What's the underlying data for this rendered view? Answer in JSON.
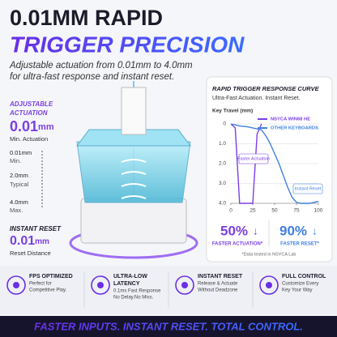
{
  "header": {
    "title_line1": "0.01MM RAPID",
    "title_line2": "TRIGGER PRECISION",
    "subtitle_lines": [
      "Adjustable actuation from 0.01mm to 4.0mm",
      "for ultra-fast response and instant reset."
    ]
  },
  "left_panel": {
    "actuation_label": [
      "ADJUSTABLE",
      "ACTUATION"
    ],
    "actuation_value": "0.01",
    "actuation_unit": "mm",
    "actuation_caption": "Min. Actuation",
    "scale": [
      {
        "value": "0.01mm",
        "caption": "Min."
      },
      {
        "value": "2.0mm",
        "caption": "Typical"
      },
      {
        "value": "4.0mm",
        "caption": "Max."
      }
    ],
    "reset_label": "INSTANT RESET",
    "reset_value": "0.01",
    "reset_unit": "mm",
    "reset_caption": "Reset Distance"
  },
  "chart_data": {
    "type": "line",
    "title": "RAPID TRIGGER RESPONSE CURVE",
    "subtitle": "Ultra-Fast Actuation. Instant Reset.",
    "y_label": "Key Travel (mm)",
    "x": [
      0,
      5,
      10,
      20,
      25,
      30,
      35,
      40,
      45,
      50,
      55,
      60,
      65,
      70,
      75,
      80,
      90,
      100
    ],
    "series": [
      {
        "name": "NSYCA WIN68 HE",
        "color": "#7b3fe4",
        "values": [
          0,
          0.2,
          4.0,
          4.0,
          4.0,
          0.5,
          0,
          null,
          null,
          null,
          null,
          null,
          null,
          null,
          null,
          null,
          null,
          null
        ]
      },
      {
        "name": "OTHER KEYBOARDS",
        "color": "#3f7fe0",
        "values": [
          0,
          0.05,
          0.1,
          0.15,
          0.2,
          0.25,
          0.3,
          0.6,
          1.0,
          1.5,
          2.0,
          2.6,
          3.2,
          3.7,
          3.95,
          4.0,
          4.0,
          3.9
        ]
      }
    ],
    "xlim": [
      0,
      100
    ],
    "ylim": [
      0,
      4
    ],
    "xticks": [
      0,
      25,
      50,
      75,
      100
    ],
    "yticks": [
      0,
      {
        "value": 1,
        "label": "1.0"
      },
      {
        "value": 2,
        "label": "2.0"
      },
      {
        "value": 3,
        "label": "3.0"
      },
      {
        "value": 4,
        "label": "4.0"
      }
    ],
    "annotations": [
      "Faster Actuation",
      "Instant Reset"
    ],
    "invert_y": true
  },
  "stats": [
    {
      "value": "50%",
      "label": "FASTER ACTUATION*"
    },
    {
      "value": "90%",
      "label": "FASTER RESET*"
    }
  ],
  "stats_note": "*Data tested in NSYCA Lab",
  "features": [
    {
      "title": [
        "FPS OPTIMIZED"
      ],
      "desc": [
        "Perfect for",
        "Competitive Play."
      ]
    },
    {
      "title": [
        "ULTRA-LOW",
        "LATENCY"
      ],
      "desc": [
        "0.1ms Fast Response",
        "No Delay.No Miss."
      ]
    },
    {
      "title": [
        "INSTANT RESET"
      ],
      "desc": [
        "Release & Actuate",
        "Without Deadzone"
      ]
    },
    {
      "title": [
        "FULL CONTROL"
      ],
      "desc": [
        "Customize Every",
        "Key Your Way"
      ]
    }
  ],
  "footer": "FASTER INPUTS. INSTANT RESET. TOTAL CONTROL."
}
